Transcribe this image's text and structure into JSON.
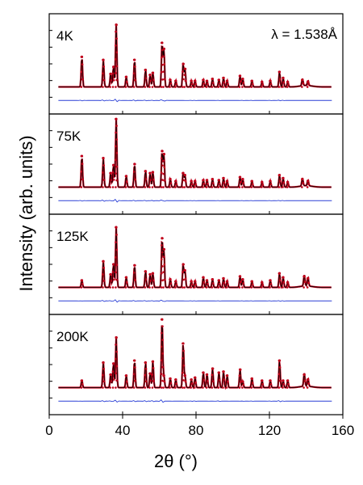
{
  "chart_data": {
    "type": "line",
    "xlabel": "2θ (°)",
    "ylabel": "Intensity (arb. units)",
    "xlim": [
      0,
      160
    ],
    "xticks": [
      0,
      40,
      80,
      120,
      160
    ],
    "annotation": "λ = 1.538Å",
    "colors": {
      "observed": "#c0001a",
      "calculated": "#000000",
      "difference": "#2a3fd6"
    },
    "panels": [
      {
        "label": "4K",
        "peaks": [
          {
            "x": 17.8,
            "h": 0.3
          },
          {
            "x": 29.5,
            "h": 0.27
          },
          {
            "x": 33.5,
            "h": 0.13
          },
          {
            "x": 35.0,
            "h": 0.2
          },
          {
            "x": 36.5,
            "h": 0.62
          },
          {
            "x": 42.0,
            "h": 0.1
          },
          {
            "x": 46.5,
            "h": 0.27
          },
          {
            "x": 52.5,
            "h": 0.17
          },
          {
            "x": 55.0,
            "h": 0.12
          },
          {
            "x": 56.5,
            "h": 0.14
          },
          {
            "x": 61.5,
            "h": 0.44
          },
          {
            "x": 62.5,
            "h": 0.38
          },
          {
            "x": 66.0,
            "h": 0.07
          },
          {
            "x": 69.0,
            "h": 0.06
          },
          {
            "x": 73.0,
            "h": 0.23
          },
          {
            "x": 74.0,
            "h": 0.18
          },
          {
            "x": 77.5,
            "h": 0.06
          },
          {
            "x": 79.5,
            "h": 0.06
          },
          {
            "x": 84.0,
            "h": 0.07
          },
          {
            "x": 86.0,
            "h": 0.06
          },
          {
            "x": 89.0,
            "h": 0.08
          },
          {
            "x": 92.5,
            "h": 0.07
          },
          {
            "x": 95.0,
            "h": 0.09
          },
          {
            "x": 97.0,
            "h": 0.06
          },
          {
            "x": 104.0,
            "h": 0.11
          },
          {
            "x": 105.5,
            "h": 0.08
          },
          {
            "x": 110.5,
            "h": 0.06
          },
          {
            "x": 116.0,
            "h": 0.05
          },
          {
            "x": 120.5,
            "h": 0.06
          },
          {
            "x": 125.5,
            "h": 0.15
          },
          {
            "x": 127.5,
            "h": 0.09
          },
          {
            "x": 130.0,
            "h": 0.05
          },
          {
            "x": 138.0,
            "h": 0.07
          },
          {
            "x": 141.0,
            "h": 0.05
          }
        ]
      },
      {
        "label": "75K",
        "peaks": [
          {
            "x": 17.8,
            "h": 0.31
          },
          {
            "x": 29.5,
            "h": 0.29
          },
          {
            "x": 33.5,
            "h": 0.14
          },
          {
            "x": 35.0,
            "h": 0.22
          },
          {
            "x": 36.5,
            "h": 0.68
          },
          {
            "x": 42.0,
            "h": 0.11
          },
          {
            "x": 46.5,
            "h": 0.23
          },
          {
            "x": 52.5,
            "h": 0.16
          },
          {
            "x": 55.0,
            "h": 0.14
          },
          {
            "x": 56.5,
            "h": 0.15
          },
          {
            "x": 61.5,
            "h": 0.36
          },
          {
            "x": 62.5,
            "h": 0.33
          },
          {
            "x": 66.0,
            "h": 0.08
          },
          {
            "x": 69.0,
            "h": 0.06
          },
          {
            "x": 73.0,
            "h": 0.14
          },
          {
            "x": 74.0,
            "h": 0.12
          },
          {
            "x": 77.5,
            "h": 0.06
          },
          {
            "x": 79.5,
            "h": 0.06
          },
          {
            "x": 84.0,
            "h": 0.07
          },
          {
            "x": 86.0,
            "h": 0.07
          },
          {
            "x": 89.0,
            "h": 0.08
          },
          {
            "x": 92.5,
            "h": 0.07
          },
          {
            "x": 95.0,
            "h": 0.09
          },
          {
            "x": 97.0,
            "h": 0.06
          },
          {
            "x": 104.0,
            "h": 0.1
          },
          {
            "x": 105.5,
            "h": 0.08
          },
          {
            "x": 110.5,
            "h": 0.06
          },
          {
            "x": 116.0,
            "h": 0.05
          },
          {
            "x": 120.5,
            "h": 0.06
          },
          {
            "x": 125.5,
            "h": 0.12
          },
          {
            "x": 127.5,
            "h": 0.09
          },
          {
            "x": 130.0,
            "h": 0.05
          },
          {
            "x": 138.0,
            "h": 0.08
          },
          {
            "x": 141.0,
            "h": 0.06
          }
        ]
      },
      {
        "label": "125K",
        "peaks": [
          {
            "x": 17.8,
            "h": 0.07
          },
          {
            "x": 29.5,
            "h": 0.26
          },
          {
            "x": 33.5,
            "h": 0.13
          },
          {
            "x": 35.0,
            "h": 0.23
          },
          {
            "x": 36.5,
            "h": 0.6
          },
          {
            "x": 42.0,
            "h": 0.1
          },
          {
            "x": 46.5,
            "h": 0.22
          },
          {
            "x": 52.5,
            "h": 0.16
          },
          {
            "x": 55.0,
            "h": 0.13
          },
          {
            "x": 56.5,
            "h": 0.14
          },
          {
            "x": 61.5,
            "h": 0.49
          },
          {
            "x": 62.5,
            "h": 0.38
          },
          {
            "x": 66.0,
            "h": 0.08
          },
          {
            "x": 69.0,
            "h": 0.06
          },
          {
            "x": 73.0,
            "h": 0.23
          },
          {
            "x": 74.0,
            "h": 0.17
          },
          {
            "x": 77.5,
            "h": 0.06
          },
          {
            "x": 79.5,
            "h": 0.06
          },
          {
            "x": 84.0,
            "h": 0.1
          },
          {
            "x": 86.0,
            "h": 0.07
          },
          {
            "x": 89.0,
            "h": 0.08
          },
          {
            "x": 92.5,
            "h": 0.07
          },
          {
            "x": 95.0,
            "h": 0.09
          },
          {
            "x": 97.0,
            "h": 0.06
          },
          {
            "x": 104.0,
            "h": 0.11
          },
          {
            "x": 105.5,
            "h": 0.08
          },
          {
            "x": 110.5,
            "h": 0.06
          },
          {
            "x": 116.0,
            "h": 0.05
          },
          {
            "x": 120.5,
            "h": 0.07
          },
          {
            "x": 125.5,
            "h": 0.14
          },
          {
            "x": 127.5,
            "h": 0.1
          },
          {
            "x": 130.0,
            "h": 0.05
          },
          {
            "x": 139.0,
            "h": 0.11
          },
          {
            "x": 141.0,
            "h": 0.09
          }
        ]
      },
      {
        "label": "200K",
        "peaks": [
          {
            "x": 17.8,
            "h": 0.07
          },
          {
            "x": 29.5,
            "h": 0.25
          },
          {
            "x": 33.5,
            "h": 0.13
          },
          {
            "x": 35.0,
            "h": 0.24
          },
          {
            "x": 36.5,
            "h": 0.5
          },
          {
            "x": 42.0,
            "h": 0.12
          },
          {
            "x": 46.5,
            "h": 0.27
          },
          {
            "x": 52.5,
            "h": 0.25
          },
          {
            "x": 55.0,
            "h": 0.14
          },
          {
            "x": 56.5,
            "h": 0.26
          },
          {
            "x": 61.5,
            "h": 0.68
          },
          {
            "x": 62.5,
            "h": 0.12
          },
          {
            "x": 66.0,
            "h": 0.09
          },
          {
            "x": 69.0,
            "h": 0.08
          },
          {
            "x": 73.0,
            "h": 0.44
          },
          {
            "x": 74.0,
            "h": 0.12
          },
          {
            "x": 77.5,
            "h": 0.08
          },
          {
            "x": 79.5,
            "h": 0.1
          },
          {
            "x": 84.0,
            "h": 0.15
          },
          {
            "x": 86.0,
            "h": 0.13
          },
          {
            "x": 89.0,
            "h": 0.19
          },
          {
            "x": 92.5,
            "h": 0.15
          },
          {
            "x": 95.0,
            "h": 0.16
          },
          {
            "x": 97.0,
            "h": 0.12
          },
          {
            "x": 104.0,
            "h": 0.18
          },
          {
            "x": 105.5,
            "h": 0.06
          },
          {
            "x": 110.5,
            "h": 0.09
          },
          {
            "x": 116.0,
            "h": 0.07
          },
          {
            "x": 120.5,
            "h": 0.07
          },
          {
            "x": 125.5,
            "h": 0.27
          },
          {
            "x": 127.5,
            "h": 0.07
          },
          {
            "x": 130.0,
            "h": 0.07
          },
          {
            "x": 139.0,
            "h": 0.13
          },
          {
            "x": 141.0,
            "h": 0.08
          }
        ]
      }
    ]
  }
}
